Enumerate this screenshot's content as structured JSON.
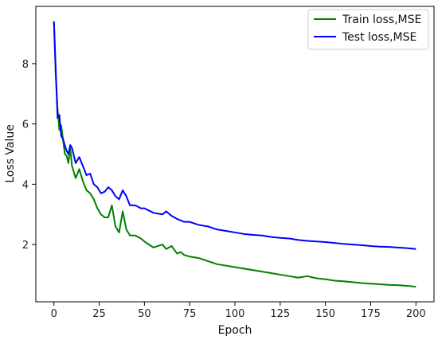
{
  "chart_data": {
    "type": "line",
    "title": "",
    "xlabel": "Epoch",
    "ylabel": "Loss Value",
    "xlim": [
      -10,
      210
    ],
    "ylim": [
      0.1,
      9.9
    ],
    "xticks": [
      0,
      25,
      50,
      75,
      100,
      125,
      150,
      175,
      200
    ],
    "yticks": [
      2,
      4,
      6,
      8
    ],
    "grid": false,
    "legend_position": "top-right",
    "series": [
      {
        "name": "Train loss,MSE",
        "color": "#008000",
        "x": [
          0,
          1,
          2,
          3,
          4,
          5,
          6,
          7,
          8,
          9,
          10,
          12,
          14,
          16,
          18,
          20,
          22,
          24,
          26,
          28,
          30,
          32,
          34,
          36,
          38,
          40,
          42,
          45,
          48,
          50,
          55,
          60,
          62,
          65,
          68,
          70,
          72,
          75,
          80,
          85,
          90,
          95,
          100,
          105,
          110,
          115,
          120,
          125,
          130,
          135,
          140,
          145,
          150,
          155,
          160,
          165,
          170,
          175,
          180,
          185,
          190,
          195,
          200
        ],
        "y": [
          9.4,
          7.6,
          6.5,
          5.8,
          5.95,
          5.5,
          5.0,
          4.95,
          4.7,
          5.2,
          4.6,
          4.2,
          4.5,
          4.1,
          3.8,
          3.7,
          3.5,
          3.2,
          3.0,
          2.9,
          2.9,
          3.3,
          2.6,
          2.4,
          3.1,
          2.5,
          2.3,
          2.3,
          2.2,
          2.1,
          1.9,
          2.0,
          1.85,
          1.95,
          1.7,
          1.75,
          1.65,
          1.6,
          1.55,
          1.45,
          1.35,
          1.3,
          1.25,
          1.2,
          1.15,
          1.1,
          1.05,
          1.0,
          0.95,
          0.9,
          0.95,
          0.88,
          0.85,
          0.8,
          0.78,
          0.75,
          0.72,
          0.7,
          0.68,
          0.66,
          0.65,
          0.63,
          0.6
        ]
      },
      {
        "name": "Test loss,MSE",
        "color": "#0000ff",
        "x": [
          0,
          1,
          2,
          3,
          4,
          5,
          6,
          7,
          8,
          9,
          10,
          12,
          14,
          16,
          18,
          20,
          22,
          24,
          26,
          28,
          30,
          32,
          34,
          36,
          38,
          40,
          42,
          45,
          48,
          50,
          55,
          60,
          62,
          65,
          68,
          70,
          72,
          75,
          80,
          85,
          90,
          95,
          100,
          105,
          110,
          115,
          120,
          125,
          130,
          135,
          140,
          145,
          150,
          155,
          160,
          165,
          170,
          175,
          180,
          185,
          190,
          195,
          200
        ],
        "y": [
          9.4,
          7.8,
          6.2,
          6.3,
          5.6,
          5.5,
          5.3,
          5.1,
          5.0,
          5.3,
          5.2,
          4.7,
          4.9,
          4.6,
          4.3,
          4.35,
          4.0,
          3.9,
          3.7,
          3.75,
          3.9,
          3.8,
          3.6,
          3.5,
          3.8,
          3.6,
          3.3,
          3.3,
          3.2,
          3.2,
          3.05,
          3.0,
          3.1,
          2.95,
          2.85,
          2.8,
          2.75,
          2.75,
          2.65,
          2.6,
          2.5,
          2.45,
          2.4,
          2.35,
          2.32,
          2.3,
          2.25,
          2.22,
          2.2,
          2.15,
          2.12,
          2.1,
          2.08,
          2.05,
          2.02,
          2.0,
          1.98,
          1.95,
          1.93,
          1.92,
          1.9,
          1.88,
          1.85
        ]
      }
    ]
  }
}
